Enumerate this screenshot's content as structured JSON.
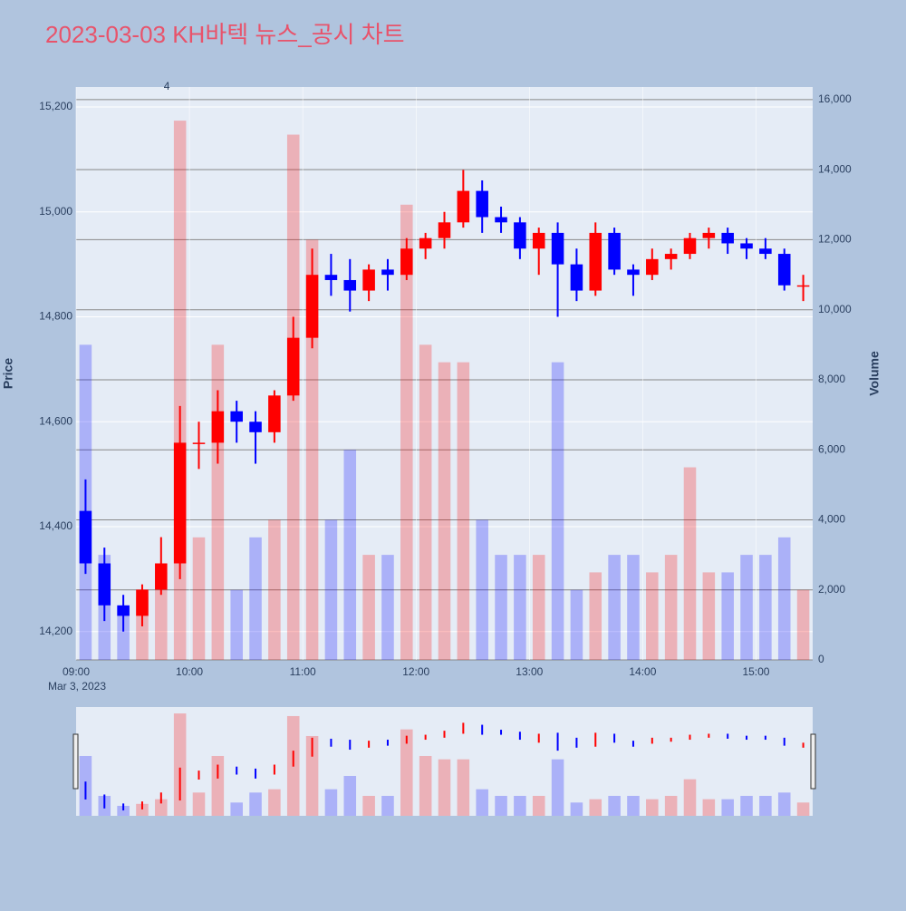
{
  "chart_data": {
    "type": "candlestick",
    "title": "2023-03-03 KH바텍 뉴스_공시 차트",
    "y_title": "Price",
    "y2_title": "Volume",
    "x_date_label": "Mar 3, 2023",
    "xlim": [
      "09:00",
      "15:30"
    ],
    "xticks": [
      "09:00",
      "10:00",
      "11:00",
      "12:00",
      "13:00",
      "14:00",
      "15:00"
    ],
    "ylim": [
      14146,
      15238
    ],
    "yticks": [
      {
        "value": 14200,
        "label": "14,200"
      },
      {
        "value": 14400,
        "label": "14,400"
      },
      {
        "value": 14600,
        "label": "14,600"
      },
      {
        "value": 14800,
        "label": "14,800"
      },
      {
        "value": 15000,
        "label": "15,000"
      },
      {
        "value": 15200,
        "label": "15,200"
      }
    ],
    "y2lim": [
      0,
      16360
    ],
    "y2ticks": [
      0,
      {
        "value": 2000,
        "label": "2,000"
      },
      {
        "value": 4000,
        "label": "4,000"
      },
      {
        "value": 6000,
        "label": "6,000"
      },
      {
        "value": 8000,
        "label": "8,000"
      },
      {
        "value": 10000,
        "label": "10,000"
      },
      {
        "value": 12000,
        "label": "12,000"
      },
      {
        "value": 14000,
        "label": "14,000"
      },
      {
        "value": 16000,
        "label": "16,000"
      }
    ],
    "increasing_color": "#ff0000",
    "decreasing_color": "#0000ff",
    "annotations": [
      {
        "x": "09:48",
        "text": "4"
      }
    ],
    "x": [
      "09:00",
      "09:10",
      "09:20",
      "09:30",
      "09:40",
      "09:50",
      "10:00",
      "10:10",
      "10:20",
      "10:30",
      "10:40",
      "10:50",
      "11:00",
      "11:10",
      "11:20",
      "11:30",
      "11:40",
      "11:50",
      "12:00",
      "12:10",
      "12:20",
      "12:30",
      "12:40",
      "12:50",
      "13:00",
      "13:10",
      "13:20",
      "13:30",
      "13:40",
      "13:50",
      "14:00",
      "14:10",
      "14:20",
      "14:30",
      "14:40",
      "14:50",
      "15:00",
      "15:10",
      "15:20"
    ],
    "open": [
      14430,
      14330,
      14250,
      14230,
      14280,
      14330,
      14560,
      14560,
      14620,
      14600,
      14580,
      14650,
      14760,
      14880,
      14870,
      14850,
      14890,
      14880,
      14930,
      14950,
      14980,
      15040,
      14990,
      14980,
      14930,
      14960,
      14900,
      14850,
      14960,
      14890,
      14880,
      14910,
      14920,
      14950,
      14960,
      14940,
      14930,
      14920,
      14860
    ],
    "high": [
      14490,
      14360,
      14270,
      14290,
      14380,
      14630,
      14600,
      14660,
      14640,
      14620,
      14660,
      14800,
      14930,
      14920,
      14910,
      14900,
      14910,
      14950,
      14960,
      15000,
      15080,
      15060,
      15010,
      14990,
      14970,
      14980,
      14930,
      14980,
      14970,
      14900,
      14930,
      14930,
      14960,
      14970,
      14970,
      14950,
      14950,
      14930,
      14880
    ],
    "low": [
      14310,
      14220,
      14200,
      14210,
      14270,
      14300,
      14510,
      14520,
      14560,
      14520,
      14560,
      14640,
      14740,
      14840,
      14810,
      14830,
      14850,
      14870,
      14910,
      14930,
      14970,
      14960,
      14960,
      14910,
      14880,
      14800,
      14830,
      14840,
      14880,
      14840,
      14870,
      14890,
      14910,
      14930,
      14920,
      14910,
      14910,
      14850,
      14830
    ],
    "close": [
      14330,
      14250,
      14230,
      14280,
      14330,
      14560,
      14560,
      14620,
      14600,
      14580,
      14650,
      14760,
      14880,
      14870,
      14850,
      14890,
      14880,
      14930,
      14950,
      14980,
      15040,
      14990,
      14980,
      14930,
      14960,
      14900,
      14850,
      14960,
      14890,
      14880,
      14910,
      14920,
      14950,
      14960,
      14940,
      14930,
      14920,
      14860,
      14860
    ],
    "volume": [
      9000,
      3000,
      1500,
      1800,
      2500,
      15400,
      3500,
      9000,
      2000,
      3500,
      4000,
      15000,
      12000,
      4000,
      6000,
      3000,
      3000,
      13000,
      9000,
      8500,
      8500,
      4000,
      3000,
      3000,
      3000,
      8500,
      2000,
      2500,
      3000,
      3000,
      2500,
      3000,
      5500,
      2500,
      2500,
      3000,
      3000,
      3500,
      2000
    ]
  }
}
